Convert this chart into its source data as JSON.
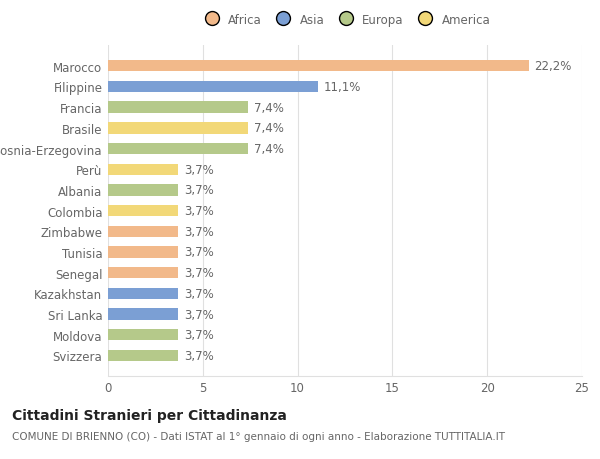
{
  "title": "Cittadini Stranieri per Cittadinanza",
  "subtitle": "COMUNE DI BRIENNO (CO) - Dati ISTAT al 1° gennaio di ogni anno - Elaborazione TUTTITALIA.IT",
  "legend_labels": [
    "Africa",
    "Asia",
    "Europa",
    "America"
  ],
  "legend_colors": [
    "#f2b98a",
    "#7b9fd4",
    "#b5c98a",
    "#f2d878"
  ],
  "categories": [
    "Marocco",
    "Filippine",
    "Francia",
    "Brasile",
    "Bosnia-Erzegovina",
    "Perù",
    "Albania",
    "Colombia",
    "Zimbabwe",
    "Tunisia",
    "Senegal",
    "Kazakhstan",
    "Sri Lanka",
    "Moldova",
    "Svizzera"
  ],
  "values": [
    22.2,
    11.1,
    7.4,
    7.4,
    7.4,
    3.7,
    3.7,
    3.7,
    3.7,
    3.7,
    3.7,
    3.7,
    3.7,
    3.7,
    3.7
  ],
  "labels": [
    "22,2%",
    "11,1%",
    "7,4%",
    "7,4%",
    "7,4%",
    "3,7%",
    "3,7%",
    "3,7%",
    "3,7%",
    "3,7%",
    "3,7%",
    "3,7%",
    "3,7%",
    "3,7%",
    "3,7%"
  ],
  "bar_colors": [
    "#f2b98a",
    "#7b9fd4",
    "#b5c98a",
    "#f2d878",
    "#b5c98a",
    "#f2d878",
    "#b5c98a",
    "#f2d878",
    "#f2b98a",
    "#f2b98a",
    "#f2b98a",
    "#7b9fd4",
    "#7b9fd4",
    "#b5c98a",
    "#b5c98a"
  ],
  "xlim": [
    0,
    25
  ],
  "xticks": [
    0,
    5,
    10,
    15,
    20,
    25
  ],
  "background_color": "#ffffff",
  "grid_color": "#e0e0e0",
  "bar_height": 0.55,
  "title_fontsize": 10,
  "subtitle_fontsize": 7.5,
  "label_fontsize": 8.5,
  "tick_fontsize": 8.5,
  "legend_fontsize": 8.5
}
